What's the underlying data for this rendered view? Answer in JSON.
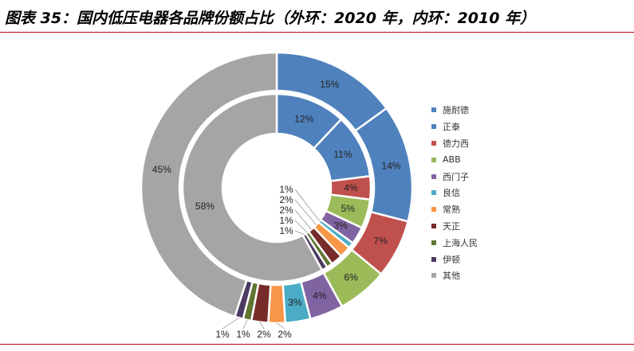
{
  "title": "图表 35：国内低压电器各品牌份额占比（外环：2020 年，内环：2010 年）",
  "chart_data": {
    "type": "donut",
    "title": "图表 35：国内低压电器各品牌份额占比（外环：2020 年，内环：2010 年）",
    "legend_position": "right",
    "categories": [
      "施耐德",
      "正泰",
      "德力西",
      "ABB",
      "西门子",
      "良信",
      "常熟",
      "天正",
      "上海人民",
      "伊顿",
      "其他"
    ],
    "colors": [
      "#4F81BD",
      "#4F81BD",
      "#C0504D",
      "#9BBB59",
      "#8064A2",
      "#4BACC6",
      "#F79646",
      "#772C2A",
      "#5F7530",
      "#4D3B62",
      "#A5A5A5"
    ],
    "series": [
      {
        "name": "外环：2020 年",
        "values": [
          15,
          14,
          7,
          6,
          4,
          3,
          2,
          2,
          1,
          1,
          45
        ]
      },
      {
        "name": "内环：2010 年",
        "values": [
          12,
          11,
          4,
          5,
          3,
          1,
          2,
          2,
          1,
          1,
          58
        ]
      }
    ],
    "unit": "%"
  }
}
